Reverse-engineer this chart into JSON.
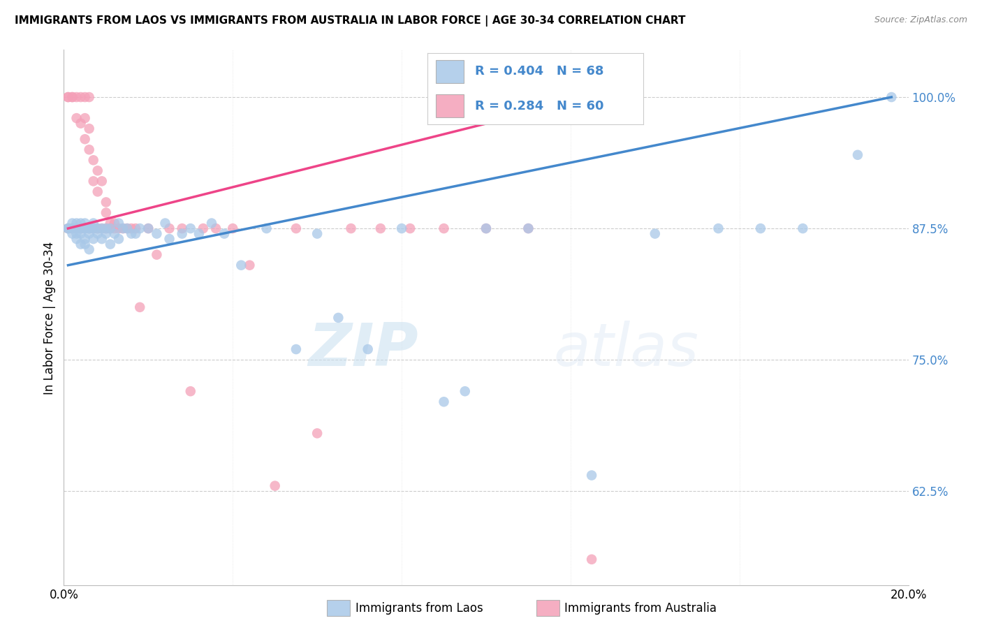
{
  "title": "IMMIGRANTS FROM LAOS VS IMMIGRANTS FROM AUSTRALIA IN LABOR FORCE | AGE 30-34 CORRELATION CHART",
  "source": "Source: ZipAtlas.com",
  "ylabel": "In Labor Force | Age 30-34",
  "legend_label1": "Immigrants from Laos",
  "legend_label2": "Immigrants from Australia",
  "r1": 0.404,
  "n1": 68,
  "r2": 0.284,
  "n2": 60,
  "color_blue": "#a8c8e8",
  "color_pink": "#f4a0b8",
  "color_blue_line": "#4488cc",
  "color_pink_line": "#ee4488",
  "color_r_text": "#4488cc",
  "xmin": 0.0,
  "xmax": 0.2,
  "ymin": 0.535,
  "ymax": 1.045,
  "yticks": [
    0.625,
    0.75,
    0.875,
    1.0
  ],
  "ytick_labels": [
    "62.5%",
    "75.0%",
    "87.5%",
    "100.0%"
  ],
  "xticks": [
    0.0,
    0.04,
    0.08,
    0.12,
    0.16,
    0.2
  ],
  "xtick_labels": [
    "0.0%",
    "",
    "",
    "",
    "",
    "20.0%"
  ],
  "background_color": "#ffffff",
  "watermark_zip": "ZIP",
  "watermark_atlas": "atlas",
  "blue_x": [
    0.001,
    0.001,
    0.002,
    0.002,
    0.002,
    0.003,
    0.003,
    0.003,
    0.003,
    0.004,
    0.004,
    0.004,
    0.004,
    0.005,
    0.005,
    0.005,
    0.005,
    0.005,
    0.006,
    0.006,
    0.006,
    0.006,
    0.007,
    0.007,
    0.007,
    0.008,
    0.008,
    0.009,
    0.009,
    0.01,
    0.01,
    0.011,
    0.011,
    0.012,
    0.013,
    0.013,
    0.014,
    0.015,
    0.016,
    0.017,
    0.018,
    0.02,
    0.022,
    0.024,
    0.025,
    0.028,
    0.03,
    0.032,
    0.035,
    0.038,
    0.042,
    0.048,
    0.055,
    0.06,
    0.065,
    0.072,
    0.08,
    0.09,
    0.095,
    0.1,
    0.11,
    0.125,
    0.14,
    0.155,
    0.165,
    0.175,
    0.188,
    0.196
  ],
  "blue_y": [
    0.875,
    0.875,
    0.875,
    0.88,
    0.87,
    0.88,
    0.875,
    0.87,
    0.865,
    0.88,
    0.875,
    0.87,
    0.86,
    0.88,
    0.875,
    0.875,
    0.865,
    0.86,
    0.875,
    0.875,
    0.87,
    0.855,
    0.88,
    0.875,
    0.865,
    0.875,
    0.87,
    0.875,
    0.865,
    0.875,
    0.87,
    0.875,
    0.86,
    0.87,
    0.88,
    0.865,
    0.875,
    0.875,
    0.87,
    0.87,
    0.875,
    0.875,
    0.87,
    0.88,
    0.865,
    0.87,
    0.875,
    0.87,
    0.88,
    0.87,
    0.84,
    0.875,
    0.76,
    0.87,
    0.79,
    0.76,
    0.875,
    0.71,
    0.72,
    0.875,
    0.875,
    0.64,
    0.87,
    0.875,
    0.875,
    0.875,
    0.945,
    1.0
  ],
  "pink_x": [
    0.001,
    0.001,
    0.001,
    0.002,
    0.002,
    0.002,
    0.003,
    0.003,
    0.003,
    0.004,
    0.004,
    0.004,
    0.005,
    0.005,
    0.005,
    0.005,
    0.006,
    0.006,
    0.006,
    0.006,
    0.007,
    0.007,
    0.007,
    0.008,
    0.008,
    0.008,
    0.009,
    0.009,
    0.01,
    0.01,
    0.01,
    0.011,
    0.011,
    0.012,
    0.012,
    0.013,
    0.014,
    0.015,
    0.016,
    0.017,
    0.018,
    0.02,
    0.022,
    0.025,
    0.028,
    0.03,
    0.033,
    0.036,
    0.04,
    0.044,
    0.05,
    0.055,
    0.06,
    0.068,
    0.075,
    0.082,
    0.09,
    0.1,
    0.11,
    0.125
  ],
  "pink_y": [
    1.0,
    1.0,
    0.875,
    1.0,
    1.0,
    0.875,
    1.0,
    0.98,
    0.875,
    1.0,
    0.975,
    0.875,
    1.0,
    0.98,
    0.96,
    0.875,
    1.0,
    0.97,
    0.95,
    0.875,
    0.94,
    0.92,
    0.875,
    0.93,
    0.91,
    0.875,
    0.92,
    0.875,
    0.9,
    0.89,
    0.875,
    0.88,
    0.875,
    0.88,
    0.875,
    0.875,
    0.875,
    0.875,
    0.875,
    0.875,
    0.8,
    0.875,
    0.85,
    0.875,
    0.875,
    0.72,
    0.875,
    0.875,
    0.875,
    0.84,
    0.63,
    0.875,
    0.68,
    0.875,
    0.875,
    0.875,
    0.875,
    0.875,
    0.875,
    0.56
  ],
  "blue_line_x": [
    0.001,
    0.196
  ],
  "blue_line_y": [
    0.84,
    1.0
  ],
  "pink_line_x": [
    0.001,
    0.125
  ],
  "pink_line_y": [
    0.875,
    1.0
  ]
}
